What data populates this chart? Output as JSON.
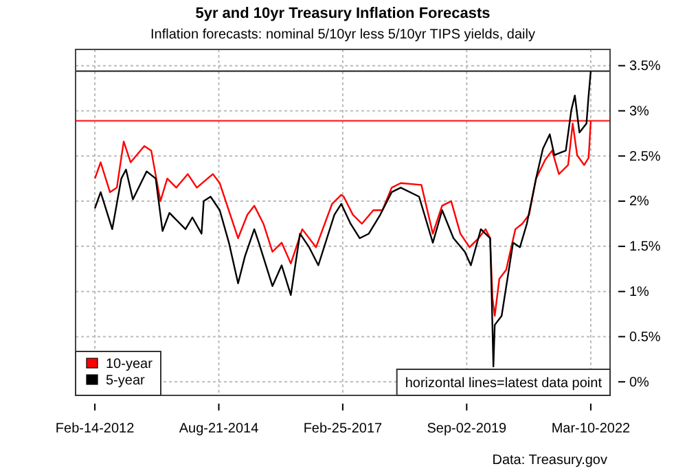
{
  "chart_data": {
    "type": "line",
    "title": "5yr and 10yr Treasury Inflation Forecasts",
    "subtitle": "Inflation forecasts: nominal 5/10yr less 5/10yr TIPS yields, daily",
    "annotations": [
      "horizontal lines=latest data point",
      "Data: Treasury.gov"
    ],
    "xlim": [
      "2011-09-24",
      "2022-07-31"
    ],
    "xticks": [
      {
        "value": "2012-02-14",
        "label": "Feb-14-2012"
      },
      {
        "value": "2014-08-21",
        "label": "Aug-21-2014"
      },
      {
        "value": "2017-02-25",
        "label": "Feb-25-2017"
      },
      {
        "value": "2019-09-02",
        "label": "Sep-02-2019"
      },
      {
        "value": "2022-03-10",
        "label": "Mar-10-2022"
      }
    ],
    "ylim": [
      -0.15,
      3.68
    ],
    "yticks": [
      {
        "value": 0,
        "label": "0%"
      },
      {
        "value": 0.5,
        "label": "0.5%"
      },
      {
        "value": 1,
        "label": "1%"
      },
      {
        "value": 1.5,
        "label": "1.5%"
      },
      {
        "value": 2,
        "label": "2%"
      },
      {
        "value": 2.5,
        "label": "2.5%"
      },
      {
        "value": 3,
        "label": "3%"
      },
      {
        "value": 3.5,
        "label": "3.5%"
      }
    ],
    "grid": true,
    "legend": "bottom left",
    "line_style": "solid",
    "ref_lines": [
      {
        "axis": "y",
        "value": 3.44,
        "color": "#333333"
      },
      {
        "axis": "y",
        "value": 2.89,
        "color": "#ff3333"
      }
    ],
    "series": [
      {
        "name": "10-year",
        "color": "#ff0000",
        "x": [
          "2012-02-14",
          "2012-03-28",
          "2012-06-05",
          "2012-07-26",
          "2012-09-15",
          "2012-11-05",
          "2013-02-15",
          "2013-04-07",
          "2013-06-14",
          "2013-08-04",
          "2013-10-10",
          "2014-01-03",
          "2014-03-11",
          "2014-07-08",
          "2014-08-28",
          "2015-01-11",
          "2015-03-21",
          "2015-05-11",
          "2015-07-18",
          "2015-09-23",
          "2015-11-30",
          "2016-02-06",
          "2016-05-01",
          "2016-08-11",
          "2016-12-08",
          "2017-02-14",
          "2017-03-04",
          "2017-05-11",
          "2017-07-17",
          "2017-10-10",
          "2017-12-16",
          "2018-02-23",
          "2018-05-01",
          "2018-10-01",
          "2018-12-25",
          "2019-03-04",
          "2019-05-10",
          "2019-07-17",
          "2019-09-23",
          "2019-11-29",
          "2020-01-20",
          "2020-02-23",
          "2020-03-11",
          "2020-03-28",
          "2020-05-01",
          "2020-06-21",
          "2020-08-28",
          "2020-10-18",
          "2020-12-08",
          "2021-01-28",
          "2021-04-07",
          "2021-05-27",
          "2021-07-17",
          "2021-09-23",
          "2021-10-27",
          "2021-11-29",
          "2022-01-20",
          "2022-02-22",
          "2022-03-10"
        ],
        "values": [
          2.25,
          2.43,
          2.1,
          2.15,
          2.66,
          2.43,
          2.61,
          2.56,
          2.0,
          2.25,
          2.15,
          2.3,
          2.15,
          2.3,
          2.2,
          1.59,
          1.85,
          1.95,
          1.75,
          1.44,
          1.54,
          1.31,
          1.69,
          1.49,
          1.97,
          2.07,
          2.05,
          1.85,
          1.75,
          1.9,
          1.9,
          2.15,
          2.2,
          2.18,
          1.64,
          1.95,
          2.0,
          1.64,
          1.49,
          1.59,
          1.69,
          1.59,
          0.93,
          0.73,
          1.14,
          1.24,
          1.69,
          1.75,
          1.85,
          2.25,
          2.46,
          2.56,
          2.3,
          2.4,
          2.86,
          2.51,
          2.4,
          2.48,
          2.89
        ]
      },
      {
        "name": "5-year",
        "color": "#000000",
        "x": [
          "2012-02-14",
          "2012-03-28",
          "2012-06-22",
          "2012-08-28",
          "2012-10-02",
          "2012-11-22",
          "2013-03-04",
          "2013-05-10",
          "2013-06-30",
          "2013-08-20",
          "2013-12-17",
          "2014-02-06",
          "2014-04-15",
          "2014-05-01",
          "2014-06-21",
          "2014-08-28",
          "2014-11-04",
          "2015-01-11",
          "2015-03-03",
          "2015-05-11",
          "2015-06-14",
          "2015-09-23",
          "2015-11-30",
          "2016-02-06",
          "2016-04-14",
          "2016-06-21",
          "2016-08-28",
          "2016-12-25",
          "2017-02-14",
          "2017-04-24",
          "2017-07-01",
          "2017-09-06",
          "2017-11-30",
          "2018-02-23",
          "2018-05-01",
          "2018-09-14",
          "2018-12-25",
          "2019-03-04",
          "2019-05-27",
          "2019-08-19",
          "2019-10-03",
          "2019-12-16",
          "2020-02-23",
          "2020-03-05",
          "2020-03-18",
          "2020-03-28",
          "2020-05-18",
          "2020-08-11",
          "2020-10-01",
          "2020-11-21",
          "2021-01-28",
          "2021-03-20",
          "2021-05-10",
          "2021-06-13",
          "2021-09-06",
          "2021-10-17",
          "2021-11-12",
          "2021-12-16",
          "2022-02-06",
          "2022-02-22",
          "2022-03-10"
        ],
        "values": [
          1.92,
          2.1,
          1.69,
          2.25,
          2.35,
          2.02,
          2.33,
          2.25,
          1.67,
          1.87,
          1.69,
          1.82,
          1.64,
          2.0,
          2.05,
          1.9,
          1.54,
          1.09,
          1.39,
          1.69,
          1.54,
          1.06,
          1.29,
          0.96,
          1.64,
          1.49,
          1.29,
          1.85,
          1.97,
          1.75,
          1.59,
          1.64,
          1.85,
          2.1,
          2.15,
          2.05,
          1.54,
          1.9,
          1.59,
          1.44,
          1.29,
          1.69,
          1.59,
          0.98,
          0.17,
          0.63,
          0.73,
          1.54,
          1.49,
          1.75,
          2.25,
          2.58,
          2.74,
          2.51,
          2.56,
          3.01,
          3.17,
          2.76,
          2.86,
          3.17,
          3.44
        ]
      }
    ]
  }
}
